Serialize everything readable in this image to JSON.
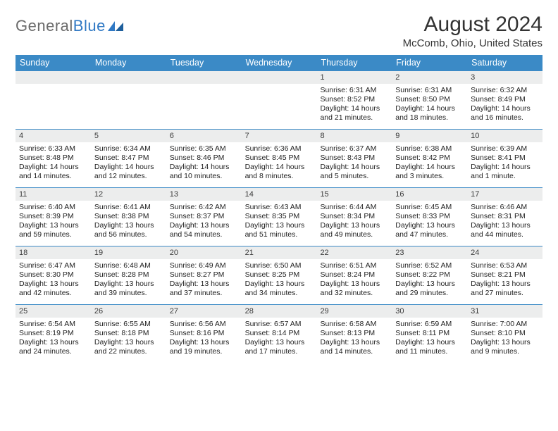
{
  "brand": {
    "gray": "General",
    "blue": "Blue"
  },
  "title": "August 2024",
  "location": "McComb, Ohio, United States",
  "colors": {
    "header_bg": "#3b8ac6",
    "header_text": "#ffffff",
    "daynum_bg": "#eceded",
    "rule": "#3b8ac6",
    "body_text": "#222222",
    "title_text": "#333333"
  },
  "days_of_week": [
    "Sunday",
    "Monday",
    "Tuesday",
    "Wednesday",
    "Thursday",
    "Friday",
    "Saturday"
  ],
  "weeks": [
    [
      {
        "n": "",
        "sr": "",
        "ss": "",
        "dl": ""
      },
      {
        "n": "",
        "sr": "",
        "ss": "",
        "dl": ""
      },
      {
        "n": "",
        "sr": "",
        "ss": "",
        "dl": ""
      },
      {
        "n": "",
        "sr": "",
        "ss": "",
        "dl": ""
      },
      {
        "n": "1",
        "sr": "Sunrise: 6:31 AM",
        "ss": "Sunset: 8:52 PM",
        "dl": "Daylight: 14 hours and 21 minutes."
      },
      {
        "n": "2",
        "sr": "Sunrise: 6:31 AM",
        "ss": "Sunset: 8:50 PM",
        "dl": "Daylight: 14 hours and 18 minutes."
      },
      {
        "n": "3",
        "sr": "Sunrise: 6:32 AM",
        "ss": "Sunset: 8:49 PM",
        "dl": "Daylight: 14 hours and 16 minutes."
      }
    ],
    [
      {
        "n": "4",
        "sr": "Sunrise: 6:33 AM",
        "ss": "Sunset: 8:48 PM",
        "dl": "Daylight: 14 hours and 14 minutes."
      },
      {
        "n": "5",
        "sr": "Sunrise: 6:34 AM",
        "ss": "Sunset: 8:47 PM",
        "dl": "Daylight: 14 hours and 12 minutes."
      },
      {
        "n": "6",
        "sr": "Sunrise: 6:35 AM",
        "ss": "Sunset: 8:46 PM",
        "dl": "Daylight: 14 hours and 10 minutes."
      },
      {
        "n": "7",
        "sr": "Sunrise: 6:36 AM",
        "ss": "Sunset: 8:45 PM",
        "dl": "Daylight: 14 hours and 8 minutes."
      },
      {
        "n": "8",
        "sr": "Sunrise: 6:37 AM",
        "ss": "Sunset: 8:43 PM",
        "dl": "Daylight: 14 hours and 5 minutes."
      },
      {
        "n": "9",
        "sr": "Sunrise: 6:38 AM",
        "ss": "Sunset: 8:42 PM",
        "dl": "Daylight: 14 hours and 3 minutes."
      },
      {
        "n": "10",
        "sr": "Sunrise: 6:39 AM",
        "ss": "Sunset: 8:41 PM",
        "dl": "Daylight: 14 hours and 1 minute."
      }
    ],
    [
      {
        "n": "11",
        "sr": "Sunrise: 6:40 AM",
        "ss": "Sunset: 8:39 PM",
        "dl": "Daylight: 13 hours and 59 minutes."
      },
      {
        "n": "12",
        "sr": "Sunrise: 6:41 AM",
        "ss": "Sunset: 8:38 PM",
        "dl": "Daylight: 13 hours and 56 minutes."
      },
      {
        "n": "13",
        "sr": "Sunrise: 6:42 AM",
        "ss": "Sunset: 8:37 PM",
        "dl": "Daylight: 13 hours and 54 minutes."
      },
      {
        "n": "14",
        "sr": "Sunrise: 6:43 AM",
        "ss": "Sunset: 8:35 PM",
        "dl": "Daylight: 13 hours and 51 minutes."
      },
      {
        "n": "15",
        "sr": "Sunrise: 6:44 AM",
        "ss": "Sunset: 8:34 PM",
        "dl": "Daylight: 13 hours and 49 minutes."
      },
      {
        "n": "16",
        "sr": "Sunrise: 6:45 AM",
        "ss": "Sunset: 8:33 PM",
        "dl": "Daylight: 13 hours and 47 minutes."
      },
      {
        "n": "17",
        "sr": "Sunrise: 6:46 AM",
        "ss": "Sunset: 8:31 PM",
        "dl": "Daylight: 13 hours and 44 minutes."
      }
    ],
    [
      {
        "n": "18",
        "sr": "Sunrise: 6:47 AM",
        "ss": "Sunset: 8:30 PM",
        "dl": "Daylight: 13 hours and 42 minutes."
      },
      {
        "n": "19",
        "sr": "Sunrise: 6:48 AM",
        "ss": "Sunset: 8:28 PM",
        "dl": "Daylight: 13 hours and 39 minutes."
      },
      {
        "n": "20",
        "sr": "Sunrise: 6:49 AM",
        "ss": "Sunset: 8:27 PM",
        "dl": "Daylight: 13 hours and 37 minutes."
      },
      {
        "n": "21",
        "sr": "Sunrise: 6:50 AM",
        "ss": "Sunset: 8:25 PM",
        "dl": "Daylight: 13 hours and 34 minutes."
      },
      {
        "n": "22",
        "sr": "Sunrise: 6:51 AM",
        "ss": "Sunset: 8:24 PM",
        "dl": "Daylight: 13 hours and 32 minutes."
      },
      {
        "n": "23",
        "sr": "Sunrise: 6:52 AM",
        "ss": "Sunset: 8:22 PM",
        "dl": "Daylight: 13 hours and 29 minutes."
      },
      {
        "n": "24",
        "sr": "Sunrise: 6:53 AM",
        "ss": "Sunset: 8:21 PM",
        "dl": "Daylight: 13 hours and 27 minutes."
      }
    ],
    [
      {
        "n": "25",
        "sr": "Sunrise: 6:54 AM",
        "ss": "Sunset: 8:19 PM",
        "dl": "Daylight: 13 hours and 24 minutes."
      },
      {
        "n": "26",
        "sr": "Sunrise: 6:55 AM",
        "ss": "Sunset: 8:18 PM",
        "dl": "Daylight: 13 hours and 22 minutes."
      },
      {
        "n": "27",
        "sr": "Sunrise: 6:56 AM",
        "ss": "Sunset: 8:16 PM",
        "dl": "Daylight: 13 hours and 19 minutes."
      },
      {
        "n": "28",
        "sr": "Sunrise: 6:57 AM",
        "ss": "Sunset: 8:14 PM",
        "dl": "Daylight: 13 hours and 17 minutes."
      },
      {
        "n": "29",
        "sr": "Sunrise: 6:58 AM",
        "ss": "Sunset: 8:13 PM",
        "dl": "Daylight: 13 hours and 14 minutes."
      },
      {
        "n": "30",
        "sr": "Sunrise: 6:59 AM",
        "ss": "Sunset: 8:11 PM",
        "dl": "Daylight: 13 hours and 11 minutes."
      },
      {
        "n": "31",
        "sr": "Sunrise: 7:00 AM",
        "ss": "Sunset: 8:10 PM",
        "dl": "Daylight: 13 hours and 9 minutes."
      }
    ]
  ]
}
